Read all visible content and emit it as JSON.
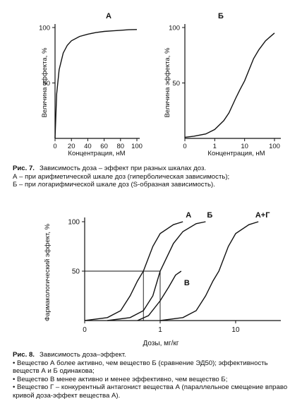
{
  "chart_data": [
    {
      "type": "line",
      "panel_label": "А",
      "title": "",
      "xlabel": "Концентрация, нМ",
      "ylabel": "Величина эффекта, %",
      "x_ticks": [
        "0",
        "20",
        "40",
        "60",
        "80",
        "100"
      ],
      "y_ticks": [
        "50",
        "100"
      ],
      "xlim": [
        0,
        100
      ],
      "ylim": [
        0,
        100
      ],
      "scale": "linear",
      "series": [
        {
          "x": [
            0,
            2,
            5,
            10,
            15,
            20,
            30,
            40,
            50,
            60,
            70,
            80,
            90,
            100
          ],
          "y": [
            0,
            40,
            62,
            77,
            84,
            88,
            92,
            94,
            95.5,
            96.5,
            97,
            97.5,
            98,
            98.2
          ]
        }
      ]
    },
    {
      "type": "line",
      "panel_label": "Б",
      "title": "",
      "xlabel": "Концентрация, нМ",
      "ylabel": "Величина эффекта, %",
      "x_ticks": [
        "0",
        "1",
        "10",
        "100"
      ],
      "y_ticks": [
        "50",
        "100"
      ],
      "xlim": [
        0.1,
        100
      ],
      "ylim": [
        0,
        100
      ],
      "scale": "log",
      "series": [
        {
          "x": [
            0.1,
            0.2,
            0.5,
            1,
            2,
            3,
            5,
            7,
            10,
            20,
            30,
            50,
            100
          ],
          "y": [
            1,
            2,
            4,
            8,
            16,
            23,
            36,
            44,
            52,
            72,
            80,
            88,
            95
          ]
        }
      ]
    },
    {
      "type": "line",
      "title": "",
      "xlabel": "Дозы, мг/кг",
      "ylabel": "Фармакологический эффект, %",
      "x_ticks": [
        "0",
        "1",
        "10"
      ],
      "y_ticks": [
        "50",
        "100"
      ],
      "xlim": [
        0.1,
        30
      ],
      "ylim": [
        0,
        100
      ],
      "scale": "log",
      "series": [
        {
          "name": "А",
          "x": [
            0.1,
            0.2,
            0.3,
            0.4,
            0.5,
            0.6,
            0.8,
            1,
            1.5,
            2
          ],
          "y": [
            0,
            3,
            10,
            25,
            40,
            50,
            75,
            88,
            97,
            100
          ]
        },
        {
          "name": "Б",
          "x": [
            0.2,
            0.4,
            0.6,
            0.8,
            1,
            1.5,
            2,
            3,
            4
          ],
          "y": [
            0,
            3,
            10,
            25,
            50,
            78,
            90,
            98,
            100
          ]
        },
        {
          "name": "В",
          "x": [
            0.5,
            0.7,
            1,
            1.3,
            1.6,
            1.9
          ],
          "y": [
            0,
            5,
            20,
            34,
            46,
            50
          ]
        },
        {
          "name": "А+Г",
          "x": [
            1,
            2,
            3,
            4,
            5,
            6,
            8,
            10,
            15,
            20
          ],
          "y": [
            0,
            3,
            10,
            25,
            40,
            50,
            75,
            88,
            97,
            100
          ]
        }
      ],
      "reference_lines": {
        "y": 50,
        "x_at_A": 0.6,
        "x_at_B": 1
      }
    }
  ],
  "captions": {
    "fig7": {
      "label": "Рис. 7.",
      "title": "Зависимость доза – эффект при разных шкалах доз.",
      "lines": [
        "А – при арифметической шкале доз (гиперболическая зависимость);",
        "Б – при логарифмической шкале доз (S-образная зависимость)."
      ]
    },
    "fig8": {
      "label": "Рис. 8.",
      "title": "Зависимость доза–эффект.",
      "lines": [
        "• Вещество А более активно, чем вещество Б (сравнение ЭД50); эффективность веществ А и Б одинакова;",
        "• Вещество В менее активно и менее эффективно, чем вещество Б;",
        "• Вещество Г – конкурентный антагонист вещества А (параллельное смещение вправо кривой доза-эффект вещества А)."
      ]
    }
  }
}
